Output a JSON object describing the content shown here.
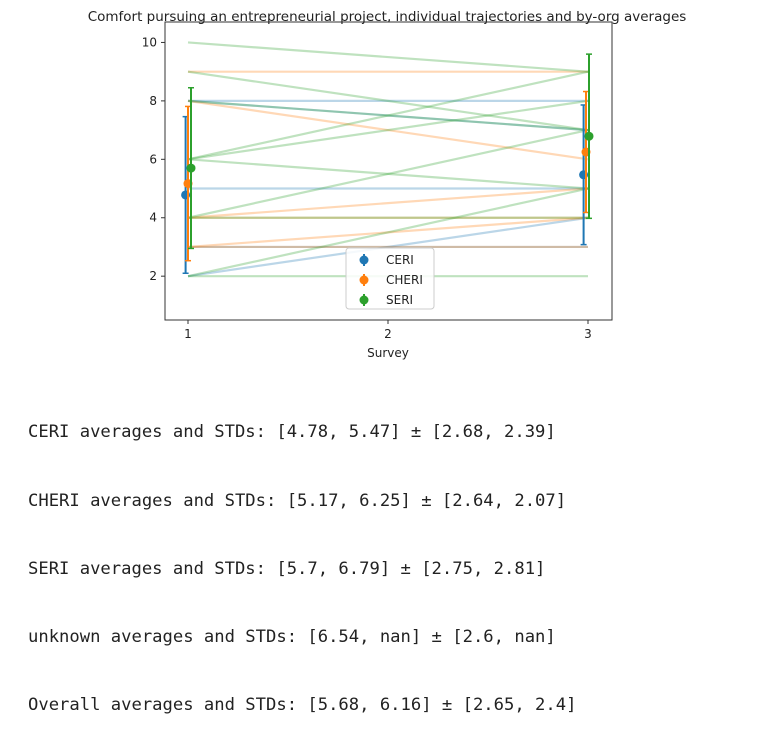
{
  "chart_data": {
    "type": "line",
    "title": "Comfort pursuing an entrepreneurial project, individual trajectories and by-org averages",
    "xlabel": "Survey",
    "ylabel": "",
    "xticks": [
      1,
      2,
      3
    ],
    "yticks": [
      2,
      4,
      6,
      8,
      10
    ],
    "xlim": [
      0.885,
      3.12
    ],
    "ylim": [
      0.5,
      10.7
    ],
    "grid": false,
    "legend_position": "bottom-center",
    "series": [
      {
        "name": "CERI",
        "color": "#1f77b4",
        "x": [
          1,
          3
        ],
        "mean": [
          4.78,
          5.47
        ],
        "std": [
          2.68,
          2.39
        ],
        "trajectories": [
          [
            8,
            8
          ],
          [
            8,
            7
          ],
          [
            5,
            5
          ],
          [
            2,
            4
          ],
          [
            3,
            3
          ]
        ]
      },
      {
        "name": "CHERI",
        "color": "#ff7f0e",
        "x": [
          1,
          3
        ],
        "mean": [
          5.17,
          6.25
        ],
        "std": [
          2.64,
          2.07
        ],
        "trajectories": [
          [
            9,
            9
          ],
          [
            8,
            6
          ],
          [
            4,
            5
          ],
          [
            3,
            4
          ],
          [
            3,
            3
          ],
          [
            4,
            4
          ]
        ]
      },
      {
        "name": "SERI",
        "color": "#2ca02c",
        "x": [
          1,
          3
        ],
        "mean": [
          5.7,
          6.79
        ],
        "std": [
          2.75,
          2.81
        ],
        "trajectories": [
          [
            10,
            9
          ],
          [
            9,
            7
          ],
          [
            8,
            7
          ],
          [
            6,
            9
          ],
          [
            6,
            8
          ],
          [
            6,
            5
          ],
          [
            4,
            7
          ],
          [
            2,
            5
          ],
          [
            4,
            4
          ],
          [
            2,
            2
          ]
        ]
      }
    ]
  },
  "output_lines": [
    "CERI averages and STDs: [4.78, 5.47] ± [2.68, 2.39]",
    "CHERI averages and STDs: [5.17, 6.25] ± [2.64, 2.07]",
    "SERI averages and STDs: [5.7, 6.79] ± [2.75, 2.81]",
    "unknown averages and STDs: [6.54, nan] ± [2.6, nan]",
    "Overall averages and STDs: [5.68, 6.16] ± [2.65, 2.4]"
  ]
}
